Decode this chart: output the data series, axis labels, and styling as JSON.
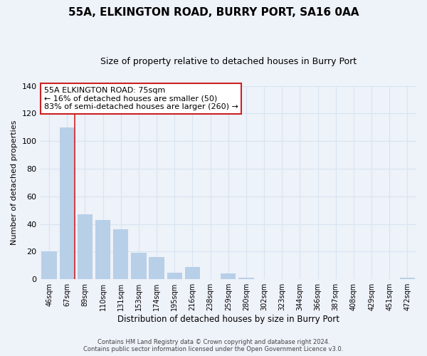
{
  "title": "55A, ELKINGTON ROAD, BURRY PORT, SA16 0AA",
  "subtitle": "Size of property relative to detached houses in Burry Port",
  "xlabel": "Distribution of detached houses by size in Burry Port",
  "ylabel": "Number of detached properties",
  "bar_labels": [
    "46sqm",
    "67sqm",
    "89sqm",
    "110sqm",
    "131sqm",
    "153sqm",
    "174sqm",
    "195sqm",
    "216sqm",
    "238sqm",
    "259sqm",
    "280sqm",
    "302sqm",
    "323sqm",
    "344sqm",
    "366sqm",
    "387sqm",
    "408sqm",
    "429sqm",
    "451sqm",
    "472sqm"
  ],
  "bar_values": [
    20,
    110,
    47,
    43,
    36,
    19,
    16,
    5,
    9,
    0,
    4,
    1,
    0,
    0,
    0,
    0,
    0,
    0,
    0,
    0,
    1
  ],
  "bar_color": "#b8cfe8",
  "vline_x_bar_index": 1,
  "vline_color": "#cc2222",
  "ylim": [
    0,
    140
  ],
  "yticks": [
    0,
    20,
    40,
    60,
    80,
    100,
    120,
    140
  ],
  "annotation_title": "55A ELKINGTON ROAD: 75sqm",
  "annotation_line1": "← 16% of detached houses are smaller (50)",
  "annotation_line2": "83% of semi-detached houses are larger (260) →",
  "annotation_box_color": "#ffffff",
  "annotation_box_edgecolor": "#cc2222",
  "footer_line1": "Contains HM Land Registry data © Crown copyright and database right 2024.",
  "footer_line2": "Contains public sector information licensed under the Open Government Licence v3.0.",
  "background_color": "#eef2f9",
  "grid_color": "#d8e4f0",
  "title_fontsize": 11,
  "subtitle_fontsize": 9
}
